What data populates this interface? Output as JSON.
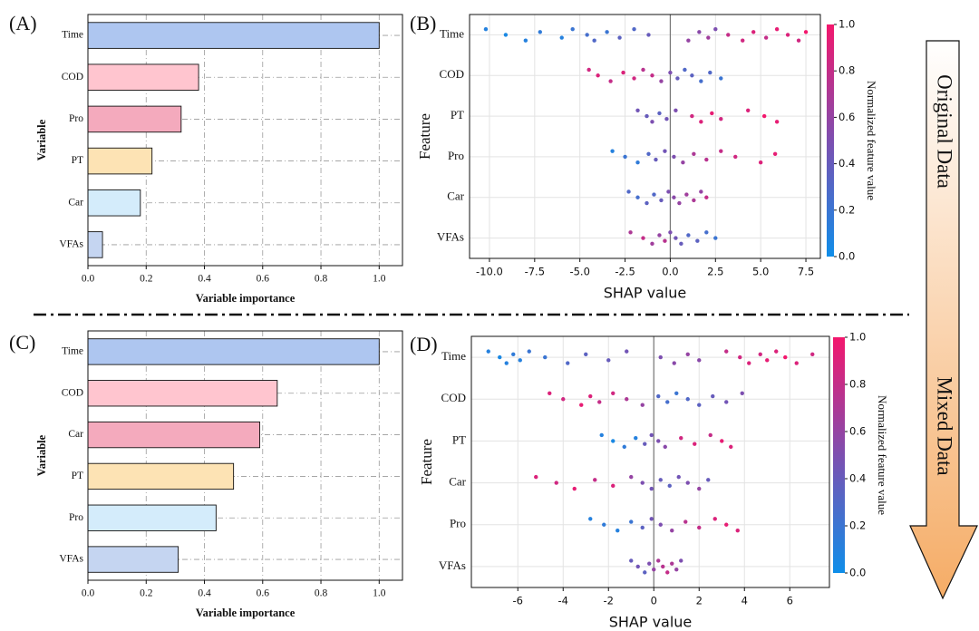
{
  "chart_data": [
    {
      "type": "hbar",
      "panel": "(A)",
      "xlabel": "Variable importance",
      "ylabel": "Variable",
      "categories": [
        "Time",
        "COD",
        "Pro",
        "PT",
        "Car",
        "VFAs"
      ],
      "values": [
        1.0,
        0.38,
        0.32,
        0.22,
        0.18,
        0.05
      ],
      "colors": [
        "#aec6f0",
        "#ffc5cf",
        "#f4aabd",
        "#fde3b4",
        "#d4ecfb",
        "#c5d5f1"
      ],
      "xlim": [
        0,
        1.08
      ],
      "xticks": [
        {
          "value": 0,
          "label": "0.0"
        },
        0.2,
        0.4,
        0.6,
        0.8,
        {
          "value": 1,
          "label": "1.0"
        }
      ],
      "grid": true,
      "grid_style": "dashdot"
    },
    {
      "type": "beeswarm",
      "panel": "(B)",
      "xlabel": "SHAP value",
      "ylabel": "Feature",
      "xlim": [
        -11.1,
        8.3
      ],
      "xticks": [
        {
          "value": -10,
          "label": "-10.0"
        },
        -7.5,
        {
          "value": -5,
          "label": "-5.0"
        },
        -2.5,
        {
          "value": 0,
          "label": "0.0"
        },
        2.5,
        {
          "value": 5,
          "label": "5.0"
        },
        7.5
      ],
      "grid": true,
      "grid_style": "solid",
      "colorbar": {
        "label": "Normalized feature value",
        "lim": [
          0,
          1
        ],
        "colormap": [
          "#0f8ee9",
          "#7d4fb0",
          "#f3176d"
        ],
        "ticks": [
          {
            "value": 0,
            "label": "0.0"
          },
          0.2,
          0.4,
          0.6,
          0.8,
          {
            "value": 1,
            "label": "1.0"
          }
        ]
      },
      "series": [
        {
          "name": "Time",
          "values": [
            -10.2,
            -9.1,
            -8.0,
            -7.2,
            -6.0,
            -5.4,
            -4.6,
            -4.2,
            -3.5,
            -2.8,
            -2.0,
            -1.2,
            1.0,
            1.6,
            2.1,
            2.5,
            3.2,
            4.0,
            4.6,
            5.3,
            5.9,
            6.5,
            7.1,
            7.5
          ],
          "color_values": [
            0.1,
            0.05,
            0.1,
            0.15,
            0.1,
            0.2,
            0.25,
            0.3,
            0.2,
            0.35,
            0.3,
            0.4,
            0.6,
            0.55,
            0.65,
            0.5,
            0.8,
            0.85,
            0.9,
            0.8,
            0.95,
            0.9,
            0.85,
            1.0
          ]
        },
        {
          "name": "COD",
          "values": [
            -4.5,
            -4.0,
            -3.3,
            -2.6,
            -2.0,
            -1.5,
            -1.0,
            -0.5,
            0,
            0.4,
            0.8,
            1.2,
            1.7,
            2.2,
            2.8
          ],
          "color_values": [
            0.85,
            0.9,
            0.8,
            0.9,
            0.85,
            0.75,
            0.8,
            0.6,
            0.5,
            0.4,
            0.3,
            0.35,
            0.25,
            0.3,
            0.2
          ]
        },
        {
          "name": "PT",
          "values": [
            -1.8,
            -1.3,
            -1.0,
            -0.6,
            -0.2,
            0.3,
            1.2,
            1.7,
            2.3,
            2.8,
            4.3,
            5.2,
            5.9
          ],
          "color_values": [
            0.45,
            0.4,
            0.5,
            0.35,
            0.45,
            0.5,
            0.85,
            0.9,
            0.95,
            0.85,
            0.9,
            1.0,
            0.95
          ]
        },
        {
          "name": "Pro",
          "values": [
            -3.2,
            -2.5,
            -1.8,
            -1.2,
            -0.8,
            -0.3,
            0.2,
            0.7,
            1.3,
            2.0,
            2.8,
            3.6,
            5.0,
            5.8
          ],
          "color_values": [
            0.1,
            0.2,
            0.15,
            0.3,
            0.4,
            0.45,
            0.5,
            0.6,
            0.7,
            0.75,
            0.8,
            0.85,
            0.9,
            0.95
          ]
        },
        {
          "name": "Car",
          "values": [
            -2.3,
            -1.8,
            -1.3,
            -0.9,
            -0.5,
            -0.1,
            0.2,
            0.5,
            0.9,
            1.3,
            1.7,
            2.0
          ],
          "color_values": [
            0.3,
            0.25,
            0.35,
            0.3,
            0.4,
            0.5,
            0.55,
            0.6,
            0.65,
            0.7,
            0.6,
            0.8
          ]
        },
        {
          "name": "VFAs",
          "values": [
            -2.2,
            -1.5,
            -1.0,
            -0.6,
            -0.3,
            0,
            0.3,
            0.6,
            1.0,
            1.5,
            2.0,
            2.5
          ],
          "color_values": [
            0.7,
            0.8,
            0.65,
            0.6,
            0.75,
            0.5,
            0.45,
            0.4,
            0.3,
            0.35,
            0.25,
            0.2
          ]
        }
      ]
    },
    {
      "type": "hbar",
      "panel": "(C)",
      "xlabel": "Variable importance",
      "ylabel": "Variable",
      "categories": [
        "Time",
        "COD",
        "Car",
        "PT",
        "Pro",
        "VFAs"
      ],
      "values": [
        1.0,
        0.65,
        0.59,
        0.5,
        0.44,
        0.31
      ],
      "colors": [
        "#aec6f0",
        "#ffc5cf",
        "#f4aabd",
        "#fde3b4",
        "#d4ecfb",
        "#c5d5f1"
      ],
      "xlim": [
        0,
        1.08
      ],
      "xticks": [
        {
          "value": 0,
          "label": "0.0"
        },
        0.2,
        0.4,
        0.6,
        0.8,
        {
          "value": 1,
          "label": "1.0"
        }
      ],
      "grid": true,
      "grid_style": "dashdot"
    },
    {
      "type": "beeswarm",
      "panel": "(D)",
      "xlabel": "SHAP value",
      "ylabel": "Feature",
      "xlim": [
        -8.05,
        7.75
      ],
      "xticks": [
        -6,
        -4,
        -2,
        0,
        2,
        4,
        6
      ],
      "grid": true,
      "grid_style": "solid",
      "colorbar": {
        "label": "Normalized feature value",
        "lim": [
          0,
          1
        ],
        "colormap": [
          "#0f8ee9",
          "#7d4fb0",
          "#f3176d"
        ],
        "ticks": [
          {
            "value": 0,
            "label": "0.0"
          },
          0.2,
          0.4,
          0.6,
          0.8,
          {
            "value": 1,
            "label": "1.0"
          }
        ]
      },
      "series": [
        {
          "name": "Time",
          "values": [
            -7.3,
            -6.8,
            -6.5,
            -6.2,
            -5.9,
            -5.5,
            -4.8,
            -3.8,
            -3.0,
            -2.0,
            -1.2,
            0.3,
            0.9,
            1.5,
            2.0,
            3.2,
            3.8,
            4.2,
            4.7,
            5.0,
            5.4,
            5.8,
            6.3,
            7.0
          ],
          "color_values": [
            0.1,
            0.05,
            0.1,
            0.15,
            0.1,
            0.2,
            0.2,
            0.3,
            0.35,
            0.4,
            0.45,
            0.5,
            0.55,
            0.6,
            0.55,
            0.8,
            0.85,
            0.9,
            0.85,
            0.95,
            0.9,
            1.0,
            0.9,
            0.85
          ]
        },
        {
          "name": "COD",
          "values": [
            -4.6,
            -4.0,
            -3.2,
            -2.8,
            -2.4,
            -1.8,
            -1.2,
            -0.5,
            0.2,
            0.6,
            1.0,
            1.5,
            2.0,
            2.6,
            3.2,
            3.9
          ],
          "color_values": [
            0.9,
            0.85,
            0.95,
            0.9,
            0.8,
            0.85,
            0.7,
            0.6,
            0.3,
            0.25,
            0.2,
            0.3,
            0.35,
            0.4,
            0.45,
            0.5
          ]
        },
        {
          "name": "PT",
          "values": [
            -2.3,
            -1.8,
            -1.3,
            -0.8,
            -0.4,
            -0.1,
            0.2,
            0.5,
            1.2,
            1.8,
            2.5,
            3.0,
            3.4
          ],
          "color_values": [
            0.1,
            0.05,
            0.15,
            0.1,
            0.4,
            0.45,
            0.5,
            0.55,
            0.85,
            0.9,
            0.8,
            0.95,
            0.9
          ]
        },
        {
          "name": "Car",
          "values": [
            -5.2,
            -4.3,
            -3.5,
            -2.6,
            -1.8,
            -1.0,
            -0.5,
            -0.1,
            0.3,
            0.7,
            1.1,
            1.5,
            2.0,
            2.4
          ],
          "color_values": [
            0.9,
            0.85,
            0.95,
            0.8,
            0.9,
            0.6,
            0.5,
            0.45,
            0.4,
            0.35,
            0.45,
            0.5,
            0.6,
            0.4
          ]
        },
        {
          "name": "Pro",
          "values": [
            -2.8,
            -2.2,
            -1.6,
            -1.0,
            -0.5,
            -0.1,
            0.3,
            0.8,
            1.4,
            2.0,
            2.7,
            3.2,
            3.7
          ],
          "color_values": [
            0.1,
            0.15,
            0.1,
            0.2,
            0.35,
            0.45,
            0.5,
            0.6,
            0.75,
            0.8,
            0.9,
            0.95,
            0.9
          ]
        },
        {
          "name": "VFAs",
          "values": [
            -1.0,
            -0.7,
            -0.4,
            -0.2,
            0,
            0.2,
            0.4,
            0.6,
            0.8,
            1.0,
            1.2
          ],
          "color_values": [
            0.4,
            0.45,
            0.35,
            0.5,
            0.6,
            0.7,
            0.75,
            0.8,
            0.7,
            0.6,
            0.5
          ]
        }
      ]
    }
  ],
  "arrow": {
    "labels": [
      "Original Data",
      "Mixed Data"
    ]
  }
}
